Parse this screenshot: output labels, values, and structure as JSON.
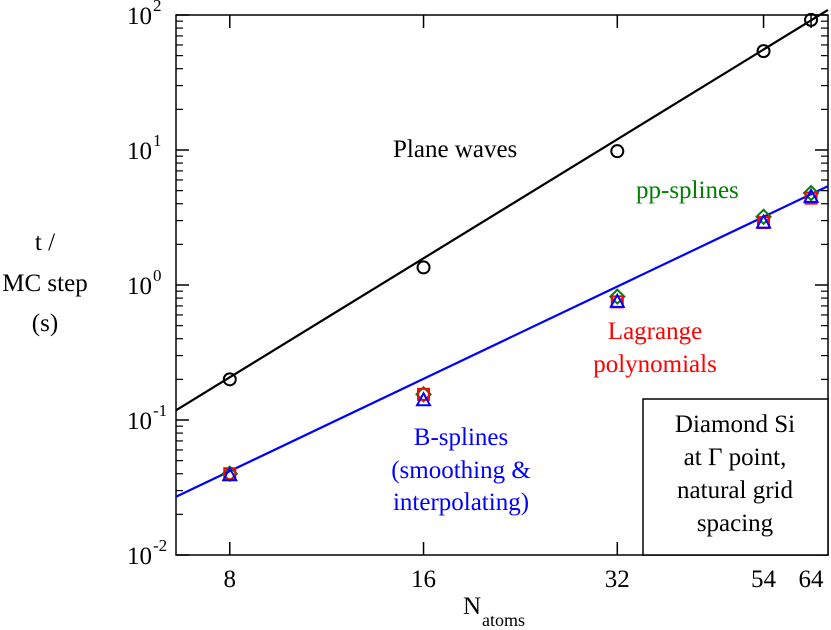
{
  "chart_data": {
    "type": "scatter",
    "title": "",
    "xscale": "log2",
    "yscale": "log10",
    "xlim": [
      6.6,
      68
    ],
    "ylim": [
      0.01,
      100
    ],
    "x_ticks": [
      {
        "value": 8,
        "label": "8"
      },
      {
        "value": 16,
        "label": "16"
      },
      {
        "value": 32,
        "label": "32"
      },
      {
        "value": 54,
        "label": "54"
      },
      {
        "value": 64,
        "label": "64"
      }
    ],
    "y_ticks": [
      {
        "value": 0.01,
        "mantissa": "10",
        "exponent": "-2"
      },
      {
        "value": 0.1,
        "mantissa": "10",
        "exponent": "-1"
      },
      {
        "value": 1,
        "mantissa": "10",
        "exponent": "0"
      },
      {
        "value": 10,
        "mantissa": "10",
        "exponent": "1"
      },
      {
        "value": 100,
        "mantissa": "10",
        "exponent": "2"
      }
    ],
    "xlabel": {
      "main": "N",
      "sub": "atoms"
    },
    "ylabel": {
      "line1": "t /",
      "line2": "MC step",
      "line3": "(s)"
    },
    "series": [
      {
        "name": "Plane waves",
        "marker": "circle",
        "color": "#000000",
        "x": [
          8,
          16,
          32,
          54,
          64
        ],
        "y": [
          0.2,
          1.35,
          9.8,
          54,
          92
        ]
      },
      {
        "name": "pp-splines",
        "marker": "diamond",
        "color": "#008000",
        "x": [
          8,
          16,
          32,
          54,
          64
        ],
        "y": [
          0.04,
          0.155,
          0.82,
          3.2,
          4.8
        ]
      },
      {
        "name": "Lagrange polynomials",
        "marker": "square",
        "color": "#ff0000",
        "x": [
          8,
          16,
          32,
          54,
          64
        ],
        "y": [
          0.04,
          0.155,
          0.75,
          2.9,
          4.4
        ]
      },
      {
        "name": "B-splines (smoothing & interpolating)",
        "marker": "triangle",
        "color": "#0000ff",
        "x": [
          8,
          16,
          32,
          54,
          64
        ],
        "y": [
          0.039,
          0.14,
          0.75,
          2.9,
          4.5
        ]
      }
    ],
    "fit_lines": [
      {
        "name": "plane-waves-fit",
        "color": "#000000",
        "x": [
          6.6,
          68
        ],
        "y": [
          0.118,
          109
        ]
      },
      {
        "name": "splines-fit",
        "color": "#0000ff",
        "x": [
          6.6,
          68
        ],
        "y": [
          0.027,
          5.4
        ]
      }
    ],
    "annotations": {
      "plane_waves": "Plane waves",
      "pp_splines": "pp-splines",
      "lagrange_line1": "Lagrange",
      "lagrange_line2": "polynomials",
      "bsplines_line1": "B-splines",
      "bsplines_line2": "(smoothing &",
      "bsplines_line3": "interpolating)"
    },
    "info_box": {
      "line1": "Diamond Si",
      "line2_prefix": "at ",
      "line2_symbol": "Γ",
      "line2_suffix": " point,",
      "line3": "natural grid",
      "line4": "spacing"
    }
  }
}
